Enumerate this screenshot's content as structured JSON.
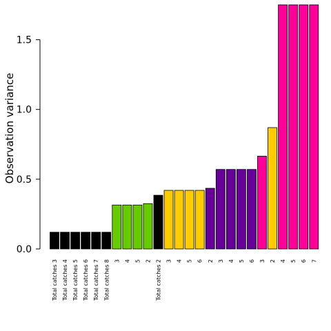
{
  "chart_data": {
    "type": "bar",
    "ylabel": "Observation variance",
    "xlabel": "",
    "ylim": [
      0,
      1.75
    ],
    "yticks": [
      "0.0",
      "0.5",
      "1.0",
      "1.5"
    ],
    "grid": false,
    "legend": "none",
    "colors": {
      "black": "#000000",
      "green": "#66cc00",
      "yellow": "#ffcc00",
      "purple": "#660099",
      "pink": "#ff0099"
    },
    "bars": [
      {
        "label": "Total catches 3",
        "value": 0.12,
        "color": "black"
      },
      {
        "label": "Total catches 4",
        "value": 0.12,
        "color": "black"
      },
      {
        "label": "Total catches 5",
        "value": 0.12,
        "color": "black"
      },
      {
        "label": "Total catches 6",
        "value": 0.12,
        "color": "black"
      },
      {
        "label": "Total catches 7",
        "value": 0.12,
        "color": "black"
      },
      {
        "label": "Total catches 8",
        "value": 0.12,
        "color": "black"
      },
      {
        "label": "3",
        "value": 0.315,
        "color": "green"
      },
      {
        "label": "4",
        "value": 0.315,
        "color": "green"
      },
      {
        "label": "5",
        "value": 0.315,
        "color": "green"
      },
      {
        "label": "2",
        "value": 0.325,
        "color": "green"
      },
      {
        "label": "Total catches 2",
        "value": 0.385,
        "color": "black"
      },
      {
        "label": "3",
        "value": 0.42,
        "color": "yellow"
      },
      {
        "label": "4",
        "value": 0.42,
        "color": "yellow"
      },
      {
        "label": "5",
        "value": 0.42,
        "color": "yellow"
      },
      {
        "label": "6",
        "value": 0.42,
        "color": "yellow"
      },
      {
        "label": "2",
        "value": 0.435,
        "color": "purple"
      },
      {
        "label": "3",
        "value": 0.57,
        "color": "purple"
      },
      {
        "label": "4",
        "value": 0.57,
        "color": "purple"
      },
      {
        "label": "5",
        "value": 0.57,
        "color": "purple"
      },
      {
        "label": "6",
        "value": 0.57,
        "color": "purple"
      },
      {
        "label": "3",
        "value": 0.665,
        "color": "pink"
      },
      {
        "label": "2",
        "value": 0.87,
        "color": "yellow"
      },
      {
        "label": "4",
        "value": 1.75,
        "color": "pink"
      },
      {
        "label": "5",
        "value": 1.75,
        "color": "pink"
      },
      {
        "label": "6",
        "value": 1.75,
        "color": "pink"
      },
      {
        "label": "7",
        "value": 1.75,
        "color": "pink"
      }
    ]
  }
}
